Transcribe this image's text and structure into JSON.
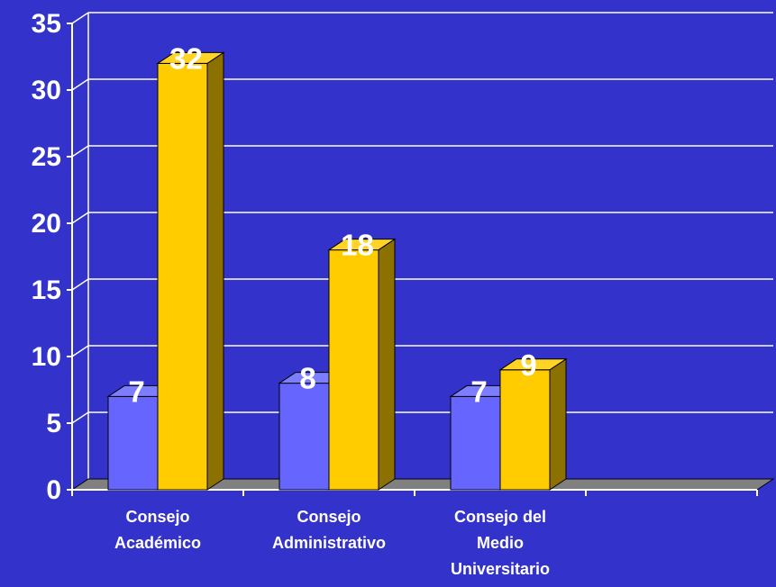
{
  "chart_data": {
    "type": "bar",
    "title": "",
    "xlabel": "",
    "ylabel": "",
    "ylim": [
      0,
      35
    ],
    "yticks": [
      0,
      5,
      10,
      15,
      20,
      25,
      30,
      35
    ],
    "grid": true,
    "legend": "none",
    "categories": [
      [
        "Consejo",
        "Académico"
      ],
      [
        "Consejo",
        "Administrativo"
      ],
      [
        "Consejo del",
        "Medio",
        "Universitario"
      ]
    ],
    "series": [
      {
        "values": [
          7,
          8,
          7
        ],
        "color": "#6666FF"
      },
      {
        "values": [
          32,
          18,
          9
        ],
        "color": "#FFCC00"
      }
    ]
  },
  "colors": {
    "background": "#3333CC",
    "floor": "#808080",
    "axis": "#FFFFFF",
    "gridline": "#FFFFFF"
  }
}
